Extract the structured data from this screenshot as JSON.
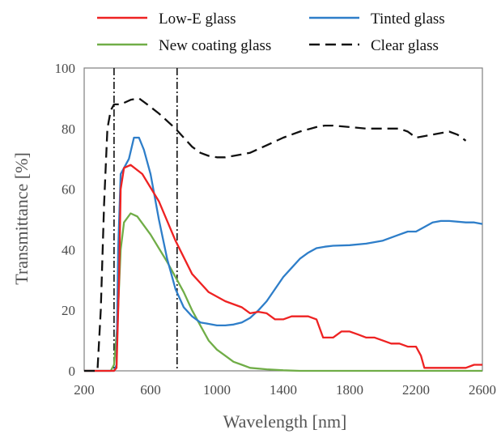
{
  "chart_data": {
    "type": "line",
    "xlabel": "Wavelength [nm]",
    "ylabel": "Transmittance [%]",
    "xlim": [
      200,
      2600
    ],
    "ylim": [
      0,
      100
    ],
    "xticks": [
      200,
      600,
      1000,
      1400,
      1800,
      2200,
      2600
    ],
    "yticks": [
      0,
      20,
      40,
      60,
      80,
      100
    ],
    "grid": false,
    "legend_position": "top",
    "reference_lines_x": [
      380,
      760
    ],
    "series": [
      {
        "name": "Low-E glass",
        "color": "#ee2222",
        "dash": "solid",
        "points": [
          [
            200,
            0
          ],
          [
            380,
            0
          ],
          [
            395,
            1
          ],
          [
            410,
            30
          ],
          [
            420,
            60
          ],
          [
            440,
            67
          ],
          [
            480,
            68
          ],
          [
            550,
            65
          ],
          [
            650,
            56
          ],
          [
            750,
            43
          ],
          [
            850,
            32
          ],
          [
            950,
            26
          ],
          [
            1050,
            23
          ],
          [
            1150,
            21
          ],
          [
            1200,
            19
          ],
          [
            1250,
            19.5
          ],
          [
            1300,
            19
          ],
          [
            1350,
            17
          ],
          [
            1400,
            17
          ],
          [
            1450,
            18
          ],
          [
            1500,
            18
          ],
          [
            1550,
            18
          ],
          [
            1600,
            17
          ],
          [
            1640,
            11
          ],
          [
            1700,
            11
          ],
          [
            1750,
            13
          ],
          [
            1800,
            13
          ],
          [
            1850,
            12
          ],
          [
            1900,
            11
          ],
          [
            1950,
            11
          ],
          [
            2000,
            10
          ],
          [
            2050,
            9
          ],
          [
            2100,
            9
          ],
          [
            2150,
            8
          ],
          [
            2200,
            8
          ],
          [
            2230,
            5
          ],
          [
            2250,
            1
          ],
          [
            2300,
            1
          ],
          [
            2350,
            1
          ],
          [
            2400,
            1
          ],
          [
            2450,
            1
          ],
          [
            2500,
            1
          ],
          [
            2550,
            2
          ],
          [
            2600,
            2
          ]
        ]
      },
      {
        "name": "Tinted glass",
        "color": "#2e7ec9",
        "dash": "solid",
        "points": [
          [
            200,
            0
          ],
          [
            380,
            0
          ],
          [
            395,
            2
          ],
          [
            405,
            40
          ],
          [
            420,
            65
          ],
          [
            440,
            67
          ],
          [
            470,
            70
          ],
          [
            500,
            77
          ],
          [
            530,
            77
          ],
          [
            560,
            73
          ],
          [
            600,
            65
          ],
          [
            650,
            50
          ],
          [
            700,
            37
          ],
          [
            750,
            27
          ],
          [
            800,
            21
          ],
          [
            850,
            18
          ],
          [
            900,
            16
          ],
          [
            950,
            15.5
          ],
          [
            1000,
            15
          ],
          [
            1050,
            15
          ],
          [
            1100,
            15.3
          ],
          [
            1150,
            16
          ],
          [
            1200,
            17.5
          ],
          [
            1250,
            20
          ],
          [
            1300,
            23
          ],
          [
            1350,
            27
          ],
          [
            1400,
            31
          ],
          [
            1450,
            34
          ],
          [
            1500,
            37
          ],
          [
            1550,
            39
          ],
          [
            1600,
            40.5
          ],
          [
            1650,
            41
          ],
          [
            1700,
            41.3
          ],
          [
            1800,
            41.5
          ],
          [
            1900,
            42
          ],
          [
            2000,
            43
          ],
          [
            2100,
            45
          ],
          [
            2150,
            46
          ],
          [
            2200,
            46
          ],
          [
            2250,
            47.5
          ],
          [
            2300,
            49
          ],
          [
            2350,
            49.5
          ],
          [
            2400,
            49.5
          ],
          [
            2500,
            49
          ],
          [
            2550,
            49
          ],
          [
            2600,
            48.5
          ]
        ]
      },
      {
        "name": "New coating glass",
        "color": "#70ad47",
        "dash": "solid",
        "points": [
          [
            200,
            0
          ],
          [
            360,
            0
          ],
          [
            380,
            2
          ],
          [
            400,
            15
          ],
          [
            420,
            40
          ],
          [
            440,
            49
          ],
          [
            480,
            52
          ],
          [
            520,
            51
          ],
          [
            600,
            45
          ],
          [
            700,
            36
          ],
          [
            750,
            31
          ],
          [
            800,
            26
          ],
          [
            850,
            20
          ],
          [
            900,
            15
          ],
          [
            950,
            10
          ],
          [
            1000,
            7
          ],
          [
            1050,
            5
          ],
          [
            1100,
            3
          ],
          [
            1150,
            2
          ],
          [
            1200,
            1
          ],
          [
            1300,
            0.5
          ],
          [
            1400,
            0.2
          ],
          [
            1500,
            0
          ],
          [
            2600,
            0
          ]
        ]
      },
      {
        "name": "Clear glass",
        "color": "#111111",
        "dash": "dashed",
        "points": [
          [
            200,
            0
          ],
          [
            280,
            0
          ],
          [
            300,
            20
          ],
          [
            320,
            55
          ],
          [
            340,
            80
          ],
          [
            360,
            86
          ],
          [
            380,
            88
          ],
          [
            420,
            88
          ],
          [
            480,
            89.5
          ],
          [
            530,
            90
          ],
          [
            580,
            88
          ],
          [
            650,
            85
          ],
          [
            750,
            80
          ],
          [
            800,
            77
          ],
          [
            850,
            74
          ],
          [
            900,
            72
          ],
          [
            950,
            71
          ],
          [
            1000,
            70.5
          ],
          [
            1050,
            70.5
          ],
          [
            1100,
            71
          ],
          [
            1150,
            71.5
          ],
          [
            1200,
            72
          ],
          [
            1300,
            74.5
          ],
          [
            1400,
            77
          ],
          [
            1500,
            79
          ],
          [
            1600,
            80.5
          ],
          [
            1650,
            81
          ],
          [
            1700,
            81
          ],
          [
            1800,
            80.5
          ],
          [
            1900,
            80
          ],
          [
            2000,
            80
          ],
          [
            2100,
            80
          ],
          [
            2150,
            79
          ],
          [
            2200,
            77
          ],
          [
            2250,
            77.5
          ],
          [
            2300,
            78
          ],
          [
            2400,
            79
          ],
          [
            2450,
            78
          ],
          [
            2500,
            76
          ]
        ]
      }
    ]
  }
}
